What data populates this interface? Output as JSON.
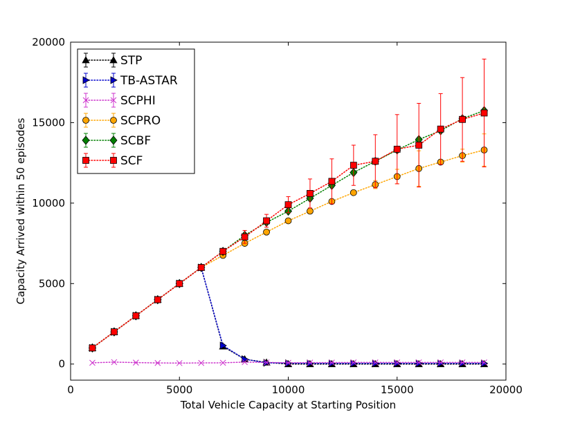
{
  "chart_data": {
    "type": "line",
    "xlabel": "Total Vehicle Capacity at Starting Position",
    "ylabel": "Capacity Arrived within 50 episodes",
    "xlim": [
      0,
      20000
    ],
    "ylim": [
      -1000,
      20000
    ],
    "xticks": [
      0,
      5000,
      10000,
      15000,
      20000
    ],
    "yticks": [
      0,
      5000,
      10000,
      15000,
      20000
    ],
    "xtick_labels": [
      "0",
      "5000",
      "10000",
      "15000",
      "20000"
    ],
    "ytick_labels": [
      "0",
      "5000",
      "10000",
      "15000",
      "20000"
    ],
    "grid": false,
    "legend_position": "top-left",
    "x": [
      1000,
      2000,
      3000,
      4000,
      5000,
      6000,
      7000,
      8000,
      9000,
      10000,
      11000,
      12000,
      13000,
      14000,
      15000,
      16000,
      17000,
      18000,
      19000
    ],
    "series": [
      {
        "name": "STP",
        "color": "#000000",
        "marker": "triangle-up",
        "values": [
          1000,
          2000,
          3000,
          4000,
          5000,
          6000,
          1100,
          300,
          100,
          0,
          0,
          0,
          0,
          0,
          0,
          0,
          0,
          0,
          0
        ],
        "errors": [
          0,
          0,
          0,
          0,
          0,
          0,
          0,
          0,
          0,
          0,
          0,
          0,
          0,
          0,
          0,
          0,
          0,
          0,
          0
        ]
      },
      {
        "name": "TB-ASTAR",
        "color": "#0000cc",
        "marker": "triangle-right",
        "values": [
          1000,
          2000,
          3000,
          4000,
          5000,
          6000,
          1150,
          300,
          80,
          50,
          40,
          40,
          40,
          40,
          40,
          40,
          40,
          40,
          40
        ],
        "errors": [
          0,
          0,
          0,
          0,
          0,
          0,
          80,
          0,
          0,
          0,
          0,
          0,
          0,
          0,
          0,
          0,
          0,
          0,
          0
        ]
      },
      {
        "name": "SCPHI",
        "color": "#cc33cc",
        "marker": "x",
        "values": [
          80,
          120,
          90,
          70,
          60,
          70,
          80,
          120,
          100,
          80,
          90,
          90,
          100,
          100,
          100,
          100,
          100,
          100,
          100
        ],
        "errors": [
          0,
          0,
          0,
          0,
          0,
          0,
          0,
          0,
          0,
          0,
          0,
          0,
          0,
          0,
          0,
          0,
          0,
          0,
          0
        ]
      },
      {
        "name": "SCPRO",
        "color": "#ffa500",
        "marker": "circle",
        "values": [
          1000,
          2000,
          3000,
          4000,
          5000,
          6000,
          6750,
          7500,
          8200,
          8900,
          9500,
          10100,
          10650,
          11150,
          11650,
          12150,
          12550,
          12950,
          13300
        ],
        "errors": [
          0,
          0,
          0,
          0,
          0,
          0,
          0,
          0,
          0,
          0,
          0,
          0,
          0,
          250,
          450,
          1100,
          0,
          400,
          1000
        ]
      },
      {
        "name": "SCBF",
        "color": "#008000",
        "marker": "diamond",
        "values": [
          1000,
          2000,
          3000,
          4000,
          5000,
          6000,
          7000,
          8000,
          8800,
          9500,
          10300,
          11100,
          11900,
          12600,
          13300,
          13950,
          14500,
          15250,
          15750
        ],
        "errors": [
          0,
          0,
          0,
          0,
          0,
          0,
          0,
          0,
          0,
          0,
          0,
          0,
          0,
          0,
          0,
          0,
          0,
          0,
          0
        ]
      },
      {
        "name": "SCF",
        "color": "#ff0000",
        "marker": "square",
        "values": [
          1000,
          2000,
          3000,
          4000,
          5000,
          6000,
          7000,
          7900,
          8900,
          9900,
          10600,
          11350,
          12350,
          12600,
          13350,
          13600,
          14600,
          15200,
          15600
        ],
        "errors": [
          0,
          0,
          0,
          0,
          0,
          0,
          0,
          400,
          400,
          500,
          900,
          1400,
          1250,
          1650,
          2150,
          2600,
          2200,
          2600,
          3350
        ]
      }
    ]
  }
}
